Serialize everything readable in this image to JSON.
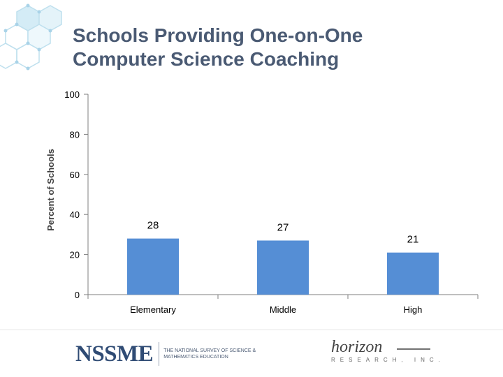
{
  "title": {
    "line1": "Schools Providing One-on-One",
    "line2": "Computer Science Coaching"
  },
  "chart_data": {
    "type": "bar",
    "categories": [
      "Elementary",
      "Middle",
      "High"
    ],
    "values": [
      28,
      27,
      21
    ],
    "data_labels": [
      "28",
      "27",
      "21"
    ],
    "ylabel": "Percent of Schools",
    "xlabel": "",
    "ylim": [
      0,
      100
    ],
    "yticks": [
      0,
      20,
      40,
      60,
      80,
      100
    ],
    "bar_color": "#558ed5",
    "grid": false,
    "legend": "none"
  },
  "footer": {
    "nssme_abbr": "NSSME",
    "nssme_full": "THE NATIONAL SURVEY OF SCIENCE & MATHEMATICS EDUCATION",
    "horizon_logo_text": "horizon",
    "horizon_sub": "RESEARCH, INC."
  },
  "colors": {
    "title": "#4a5a73",
    "bar": "#558ed5",
    "axis": "#7f7f7f",
    "hexagons": "#a9d3e8"
  }
}
